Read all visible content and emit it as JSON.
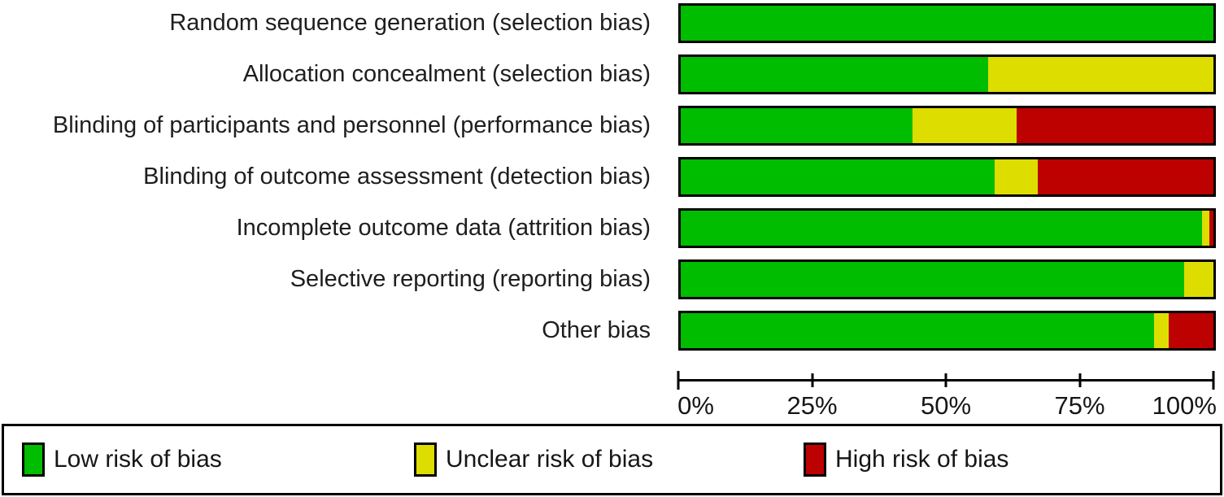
{
  "figure": {
    "background": "#ffffff",
    "frame_color": "#000000",
    "text_color": "#1e1e1e"
  },
  "chart_data": {
    "type": "bar",
    "variant": "horizontal-stacked-percentage",
    "title": "",
    "xlabel": "",
    "ylabel": "",
    "grid": false,
    "legend_position": "bottom",
    "categories": [
      "Random sequence generation (selection bias)",
      "Allocation concealment (selection bias)",
      "Blinding of participants and personnel (performance bias)",
      "Blinding of outcome assessment (detection bias)",
      "Incomplete outcome data (attrition bias)",
      "Selective reporting (reporting bias)",
      "Other bias"
    ],
    "series": [
      {
        "key": "low",
        "name": "Low risk of bias",
        "color": "#00bd00",
        "values": [
          100,
          57.7,
          43.5,
          59.0,
          97.8,
          94.5,
          88.9
        ]
      },
      {
        "key": "unclear",
        "name": "Unclear risk of bias",
        "color": "#dedd00",
        "values": [
          0,
          42.3,
          19.5,
          8.0,
          1.4,
          5.5,
          2.7
        ]
      },
      {
        "key": "high",
        "name": "High risk of bias",
        "color": "#bd0000",
        "values": [
          0,
          0,
          37.0,
          33.0,
          0.8,
          0,
          8.4
        ]
      }
    ],
    "x_axis": {
      "range": [
        0,
        100
      ],
      "tick_positions": [
        0,
        25,
        50,
        75,
        100
      ],
      "tick_labels": [
        "0%",
        "25%",
        "50%",
        "75%",
        "100%"
      ]
    },
    "legend": {
      "items": [
        {
          "label": "Low risk of bias",
          "color": "#00bd00"
        },
        {
          "label": "Unclear risk of bias",
          "color": "#dedd00"
        },
        {
          "label": "High risk of bias",
          "color": "#bd0000"
        }
      ]
    }
  }
}
